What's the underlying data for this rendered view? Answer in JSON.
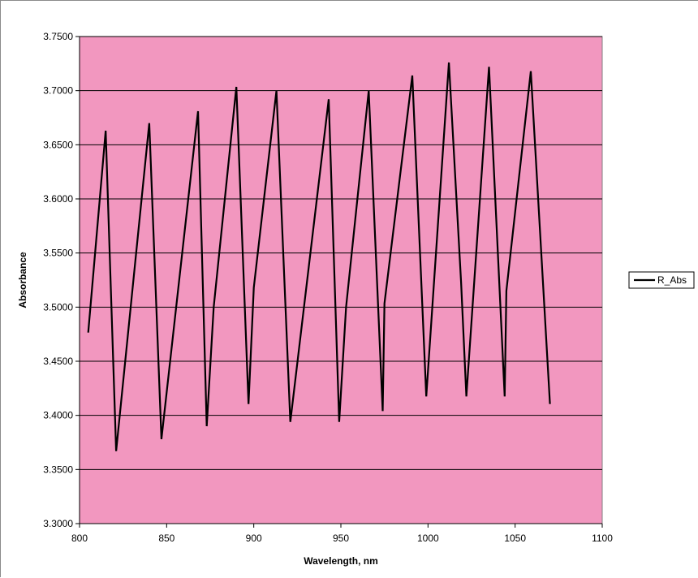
{
  "chart_data": {
    "type": "line",
    "title": "",
    "xlabel": "Wavelength, nm",
    "ylabel": "Absorbance",
    "xlim": [
      800,
      1100
    ],
    "ylim": [
      3.3,
      3.75
    ],
    "xticks": [
      800,
      850,
      900,
      950,
      1000,
      1050,
      1100
    ],
    "xtick_labels": [
      "800",
      "850",
      "900",
      "950",
      "1000",
      "1050",
      "1100"
    ],
    "yticks": [
      3.3,
      3.35,
      3.4,
      3.45,
      3.5,
      3.55,
      3.6,
      3.65,
      3.7,
      3.75
    ],
    "ytick_labels": [
      "3.3000",
      "3.3500",
      "3.4000",
      "3.4500",
      "3.5000",
      "3.5500",
      "3.6000",
      "3.6500",
      "3.7000",
      "3.7500"
    ],
    "grid": "horizontal",
    "legend": "right",
    "plot_background": "#f297bf",
    "line_color": "#000000",
    "series": [
      {
        "name": "R_Abs",
        "x": [
          805,
          815,
          821,
          840,
          847,
          868,
          873,
          877,
          890,
          897,
          900,
          913,
          921,
          943,
          949,
          953,
          966,
          974,
          975,
          991,
          999,
          1012,
          1019,
          1022,
          1035,
          1044,
          1045,
          1059,
          1070
        ],
        "y": [
          3.4765,
          3.663,
          3.367,
          3.67,
          3.378,
          3.681,
          3.39,
          3.5,
          3.7035,
          3.4105,
          3.518,
          3.7,
          3.394,
          3.692,
          3.394,
          3.5,
          3.7,
          3.404,
          3.5035,
          3.714,
          3.4175,
          3.726,
          3.523,
          3.4175,
          3.722,
          3.4175,
          3.515,
          3.718,
          3.4105
        ]
      }
    ]
  }
}
